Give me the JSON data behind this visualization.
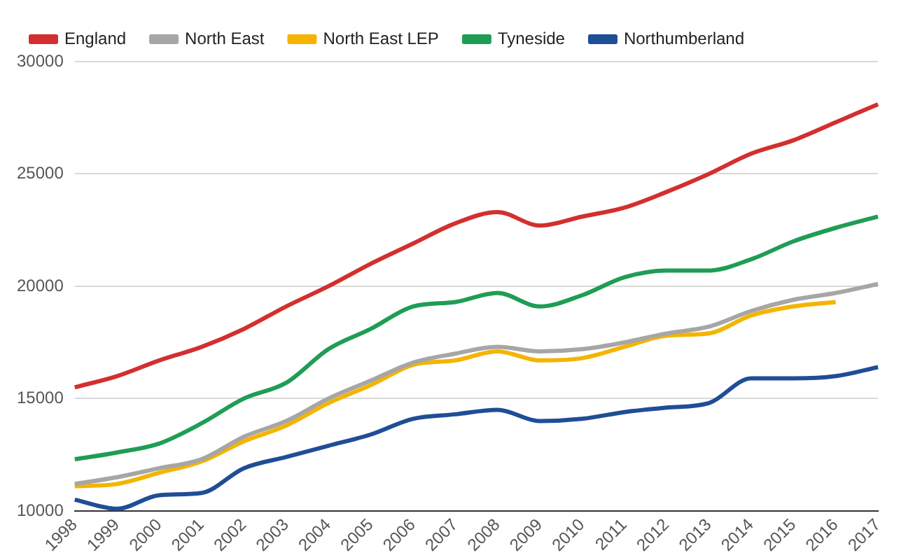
{
  "chart_data": {
    "type": "line",
    "categories": [
      "1998",
      "1999",
      "2000",
      "2001",
      "2002",
      "2003",
      "2004",
      "2005",
      "2006",
      "2007",
      "2008",
      "2009",
      "2010",
      "2011",
      "2012",
      "2013",
      "2014",
      "2015",
      "2016",
      "2017"
    ],
    "series": [
      {
        "name": "England",
        "color": "#d32f2f",
        "values": [
          15500,
          16000,
          16700,
          17300,
          18100,
          19100,
          20000,
          21000,
          21900,
          22800,
          23300,
          22700,
          23100,
          23500,
          24200,
          25000,
          25900,
          26500,
          27300,
          28100
        ]
      },
      {
        "name": "North East",
        "color": "#a6a6a6",
        "values": [
          11200,
          11500,
          11900,
          12300,
          13300,
          14000,
          15000,
          15800,
          16600,
          17000,
          17300,
          17100,
          17200,
          17500,
          17900,
          18200,
          18900,
          19400,
          19700,
          20100
        ]
      },
      {
        "name": "North East LEP",
        "color": "#f4b400",
        "values": [
          11100,
          11200,
          11700,
          12200,
          13100,
          13800,
          14800,
          15600,
          16500,
          16700,
          17100,
          16700,
          16800,
          17300,
          17800,
          17900,
          18700,
          19100,
          19300,
          null
        ]
      },
      {
        "name": "Tyneside",
        "color": "#1f9d55",
        "values": [
          12300,
          12600,
          13000,
          13900,
          15000,
          15700,
          17200,
          18100,
          19100,
          19300,
          19700,
          19100,
          19600,
          20400,
          20700,
          20700,
          21200,
          22000,
          22600,
          23100
        ]
      },
      {
        "name": "Northumberland",
        "color": "#1f4e96",
        "values": [
          10500,
          10100,
          10700,
          10800,
          11900,
          12400,
          12900,
          13400,
          14100,
          14300,
          14500,
          14000,
          14100,
          14400,
          14600,
          14800,
          15900,
          15900,
          16000,
          16400
        ]
      }
    ],
    "ylim": [
      10000,
      30000
    ],
    "yticks": [
      10000,
      15000,
      20000,
      25000,
      30000
    ],
    "grid": "y",
    "legend": "top left",
    "marker": "none",
    "line_style": "solid"
  }
}
